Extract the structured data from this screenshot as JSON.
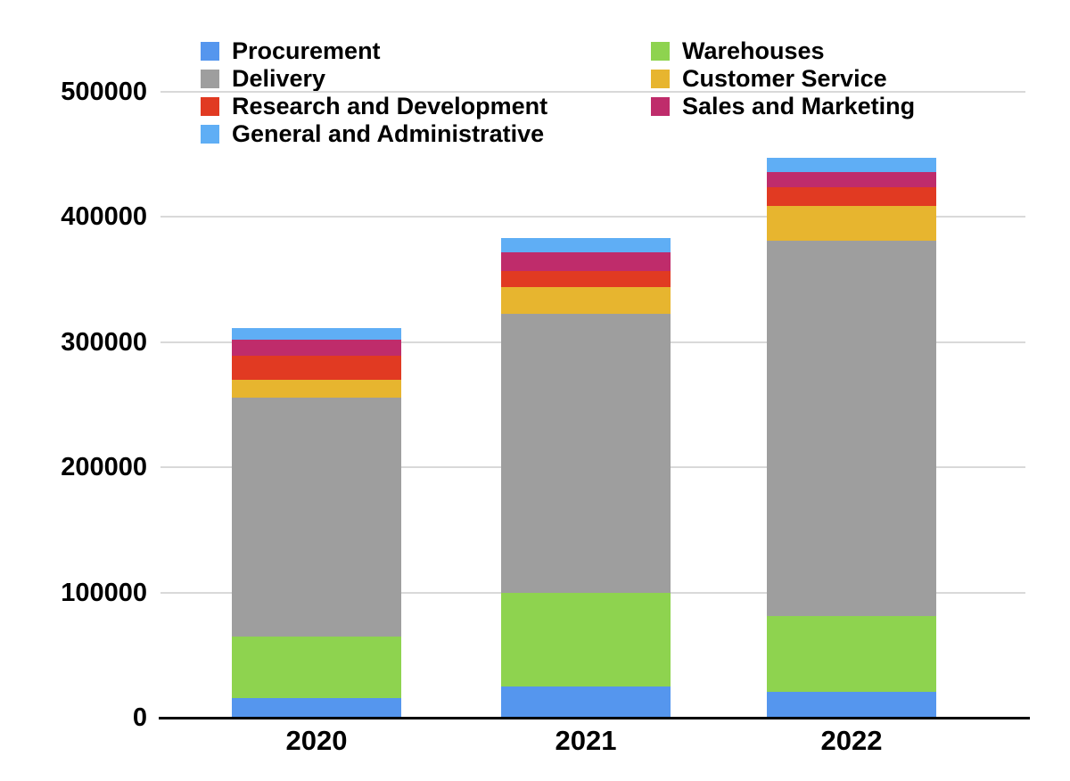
{
  "chart_data": {
    "type": "bar",
    "stacked": true,
    "title": "",
    "xlabel": "",
    "ylabel": "",
    "categories": [
      "2020",
      "2021",
      "2022"
    ],
    "series": [
      {
        "name": "Procurement",
        "color": "#5596ee",
        "values": [
          16000,
          25000,
          21000
        ]
      },
      {
        "name": "Warehouses",
        "color": "#8ed34f",
        "values": [
          49000,
          75000,
          60000
        ]
      },
      {
        "name": "Delivery",
        "color": "#9e9e9e",
        "values": [
          191000,
          223000,
          300000
        ]
      },
      {
        "name": "Customer Service",
        "color": "#e7b52f",
        "values": [
          14000,
          21000,
          28000
        ]
      },
      {
        "name": "Research and Development",
        "color": "#e13a22",
        "values": [
          19000,
          13000,
          15000
        ]
      },
      {
        "name": "Sales and Marketing",
        "color": "#bf2c6b",
        "values": [
          13000,
          15000,
          12000
        ]
      },
      {
        "name": "General and Administrative",
        "color": "#5faef5",
        "values": [
          9000,
          11000,
          11000
        ]
      }
    ],
    "stack_order": "bottom-to-top as listed in series",
    "ylim": [
      0,
      500000
    ],
    "yticks": [
      0,
      100000,
      200000,
      300000,
      400000,
      500000
    ],
    "ytick_labels": [
      "0",
      "100000",
      "200000",
      "300000",
      "400000",
      "500000"
    ],
    "grid": true,
    "legend_position": "top",
    "legend_columns": [
      [
        "Procurement",
        "Delivery",
        "Research and Development",
        "General and Administrative"
      ],
      [
        "Warehouses",
        "Customer Service",
        "Sales and Marketing"
      ]
    ],
    "colors": {
      "background": "#ffffff",
      "gridline": "#d9d9d9",
      "axis": "#000000",
      "text": "#000000"
    }
  }
}
